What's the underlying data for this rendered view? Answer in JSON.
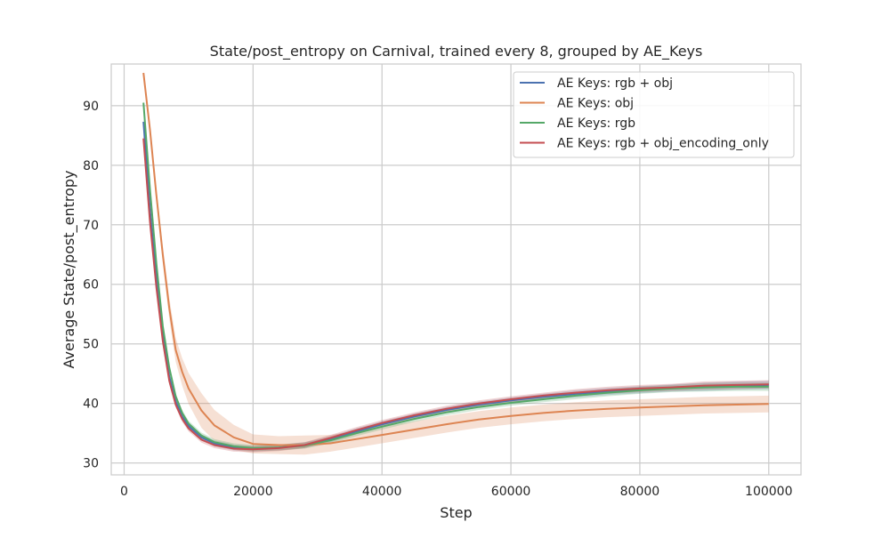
{
  "chart_data": {
    "type": "line",
    "title": "State/post_entropy on Carnival, trained every 8, grouped by AE_Keys",
    "xlabel": "Step",
    "ylabel": "Average State/post_entropy",
    "xlim": [
      -2000,
      105000
    ],
    "ylim": [
      28,
      97
    ],
    "xticks": [
      0,
      20000,
      40000,
      60000,
      80000,
      100000
    ],
    "yticks": [
      30,
      40,
      50,
      60,
      70,
      80,
      90
    ],
    "grid": true,
    "legend_position": "top-right",
    "series": [
      {
        "name": "AE Keys: rgb + obj",
        "color": "#4c72b0",
        "x": [
          3000,
          4000,
          5000,
          6000,
          7000,
          8000,
          9000,
          10000,
          12000,
          14000,
          17000,
          20000,
          24000,
          28000,
          32000,
          36000,
          40000,
          45000,
          50000,
          55000,
          60000,
          65000,
          70000,
          75000,
          80000,
          85000,
          90000,
          95000,
          100000
        ],
        "y": [
          87.3,
          72.5,
          61,
          51.5,
          44.5,
          40.3,
          37.8,
          36.2,
          34.3,
          33.3,
          32.6,
          32.4,
          32.6,
          33,
          34,
          35.3,
          36.5,
          37.8,
          38.9,
          39.8,
          40.5,
          41.1,
          41.6,
          42,
          42.3,
          42.6,
          42.8,
          43,
          43.1
        ],
        "band": [
          0.5,
          0.6,
          0.7,
          0.7,
          0.6,
          0.5,
          0.5,
          0.5,
          0.5,
          0.5,
          0.5,
          0.5,
          0.5,
          0.5,
          0.5,
          0.5,
          0.5,
          0.5,
          0.5,
          0.5,
          0.5,
          0.5,
          0.6,
          0.6,
          0.6,
          0.6,
          0.7,
          0.7,
          0.7
        ]
      },
      {
        "name": "AE Keys: obj",
        "color": "#dd8452",
        "x": [
          3000,
          4000,
          5000,
          6000,
          7000,
          8000,
          9000,
          10000,
          12000,
          14000,
          17000,
          20000,
          24000,
          28000,
          32000,
          36000,
          40000,
          45000,
          50000,
          55000,
          60000,
          65000,
          70000,
          75000,
          80000,
          85000,
          90000,
          95000,
          100000
        ],
        "y": [
          95.5,
          86,
          75,
          65,
          56,
          49,
          45.3,
          42.5,
          38.8,
          36.3,
          34.3,
          33.2,
          33,
          33,
          33.3,
          34,
          34.7,
          35.6,
          36.5,
          37.3,
          37.9,
          38.4,
          38.8,
          39.1,
          39.3,
          39.5,
          39.7,
          39.8,
          39.9
        ],
        "band": [
          0.4,
          0.8,
          1.2,
          1.5,
          1.8,
          2,
          2.3,
          2.6,
          2.9,
          2.6,
          2.1,
          1.6,
          1.5,
          1.6,
          1.4,
          1.4,
          1.4,
          1.4,
          1.4,
          1.4,
          1.4,
          1.4,
          1.4,
          1.4,
          1.4,
          1.4,
          1.4,
          1.4,
          1.4
        ]
      },
      {
        "name": "AE Keys: rgb",
        "color": "#55a868",
        "x": [
          3000,
          4000,
          5000,
          6000,
          7000,
          8000,
          9000,
          10000,
          12000,
          14000,
          17000,
          20000,
          24000,
          28000,
          32000,
          36000,
          40000,
          45000,
          50000,
          55000,
          60000,
          65000,
          70000,
          75000,
          80000,
          85000,
          90000,
          95000,
          100000
        ],
        "y": [
          90.5,
          76,
          63.5,
          53,
          46,
          41.2,
          38.4,
          36.6,
          34.6,
          33.5,
          32.8,
          32.5,
          32.6,
          32.9,
          33.8,
          35,
          36.1,
          37.4,
          38.5,
          39.4,
          40.1,
          40.7,
          41.3,
          41.8,
          42.2,
          42.5,
          42.7,
          42.8,
          42.8
        ],
        "band": [
          0.5,
          0.6,
          0.7,
          0.7,
          0.6,
          0.5,
          0.5,
          0.5,
          0.5,
          0.5,
          0.5,
          0.5,
          0.5,
          0.5,
          0.5,
          0.5,
          0.5,
          0.5,
          0.5,
          0.5,
          0.5,
          0.5,
          0.6,
          0.6,
          0.6,
          0.6,
          0.7,
          0.7,
          0.7
        ]
      },
      {
        "name": "AE Keys: rgb + obj_encoding_only",
        "color": "#c44e52",
        "x": [
          3000,
          4000,
          5000,
          6000,
          7000,
          8000,
          9000,
          10000,
          12000,
          14000,
          17000,
          20000,
          24000,
          28000,
          32000,
          36000,
          40000,
          45000,
          50000,
          55000,
          60000,
          65000,
          70000,
          75000,
          80000,
          85000,
          90000,
          95000,
          100000
        ],
        "y": [
          84.5,
          70.5,
          59.5,
          50.5,
          43.8,
          39.8,
          37.4,
          35.8,
          33.9,
          33,
          32.4,
          32.3,
          32.5,
          33,
          34.2,
          35.5,
          36.7,
          38,
          39.1,
          40,
          40.7,
          41.3,
          41.8,
          42.2,
          42.5,
          42.7,
          43,
          43.1,
          43.2
        ],
        "band": [
          0.5,
          0.6,
          0.7,
          0.7,
          0.6,
          0.5,
          0.5,
          0.5,
          0.5,
          0.5,
          0.5,
          0.5,
          0.5,
          0.5,
          0.5,
          0.5,
          0.5,
          0.5,
          0.5,
          0.5,
          0.5,
          0.5,
          0.6,
          0.6,
          0.6,
          0.6,
          0.7,
          0.7,
          0.7
        ]
      }
    ]
  }
}
